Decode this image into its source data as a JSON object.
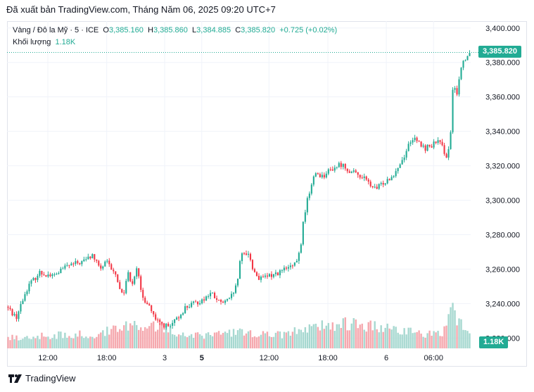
{
  "header": {
    "published": "Đã xuất bản TradingView.com, Tháng Năm 06, 2025 09:20 UTC+7"
  },
  "legend": {
    "symbol": "Vàng / Đô la Mỹ · 5 · ICE",
    "o_label": "O",
    "o_value": "3,385.160",
    "h_label": "H",
    "h_value": "3,385.860",
    "l_label": "L",
    "l_value": "3,384.885",
    "c_label": "C",
    "c_value": "3,385.820",
    "change": "+0.725 (+0.02%)",
    "volume_label": "Khối lượng",
    "volume_value": "1.18K"
  },
  "price_tag": "3,385.820",
  "volume_tag": "1.18K",
  "footer": {
    "brand": "TradingView"
  },
  "colors": {
    "up": "#22ab94",
    "down": "#f23645",
    "vol_up": "#a6d8d0",
    "vol_down": "#f5a8ae",
    "grid": "#f0f3fa",
    "text": "#131722"
  },
  "chart_data": {
    "type": "candlestick",
    "title": "Vàng / Đô la Mỹ · 5 · ICE",
    "y_ticks": [
      "3,400.000",
      "3,380.000",
      "3,360.000",
      "3,340.000",
      "3,320.000",
      "3,300.000",
      "3,280.000",
      "3,260.000",
      "3,240.000",
      "3,220.000"
    ],
    "y_tick_values": [
      3400,
      3380,
      3360,
      3340,
      3320,
      3300,
      3280,
      3260,
      3240,
      3220
    ],
    "ylim": [
      3214,
      3404
    ],
    "x_ticks": [
      {
        "label": "12:00",
        "bold": false,
        "pos": 0.088
      },
      {
        "label": "18:00",
        "bold": false,
        "pos": 0.215
      },
      {
        "label": "3",
        "bold": false,
        "pos": 0.34
      },
      {
        "label": "5",
        "bold": true,
        "pos": 0.42
      },
      {
        "label": "12:00",
        "bold": false,
        "pos": 0.565
      },
      {
        "label": "18:00",
        "bold": false,
        "pos": 0.692
      },
      {
        "label": "6",
        "bold": false,
        "pos": 0.818
      },
      {
        "label": "06:00",
        "bold": false,
        "pos": 0.92
      }
    ],
    "last_price": 3385.82,
    "path": [
      [
        0,
        3238
      ],
      [
        0.02,
        3232
      ],
      [
        0.045,
        3250
      ],
      [
        0.07,
        3258
      ],
      [
        0.1,
        3256
      ],
      [
        0.13,
        3262
      ],
      [
        0.16,
        3264
      ],
      [
        0.185,
        3268
      ],
      [
        0.2,
        3260
      ],
      [
        0.215,
        3264
      ],
      [
        0.235,
        3256
      ],
      [
        0.25,
        3244
      ],
      [
        0.26,
        3258
      ],
      [
        0.27,
        3252
      ],
      [
        0.28,
        3262
      ],
      [
        0.29,
        3244
      ],
      [
        0.305,
        3240
      ],
      [
        0.32,
        3230
      ],
      [
        0.335,
        3228
      ],
      [
        0.35,
        3226
      ],
      [
        0.37,
        3232
      ],
      [
        0.385,
        3238
      ],
      [
        0.405,
        3240
      ],
      [
        0.42,
        3242
      ],
      [
        0.44,
        3246
      ],
      [
        0.46,
        3240
      ],
      [
        0.48,
        3242
      ],
      [
        0.495,
        3250
      ],
      [
        0.505,
        3268
      ],
      [
        0.52,
        3270
      ],
      [
        0.53,
        3260
      ],
      [
        0.545,
        3254
      ],
      [
        0.565,
        3256
      ],
      [
        0.585,
        3258
      ],
      [
        0.6,
        3260
      ],
      [
        0.62,
        3262
      ],
      [
        0.632,
        3270
      ],
      [
        0.64,
        3290
      ],
      [
        0.65,
        3303
      ],
      [
        0.665,
        3316
      ],
      [
        0.68,
        3314
      ],
      [
        0.7,
        3318
      ],
      [
        0.72,
        3321
      ],
      [
        0.745,
        3316
      ],
      [
        0.765,
        3314
      ],
      [
        0.78,
        3310
      ],
      [
        0.795,
        3306
      ],
      [
        0.81,
        3310
      ],
      [
        0.83,
        3314
      ],
      [
        0.85,
        3322
      ],
      [
        0.86,
        3328
      ],
      [
        0.872,
        3336
      ],
      [
        0.885,
        3334
      ],
      [
        0.9,
        3330
      ],
      [
        0.915,
        3332
      ],
      [
        0.93,
        3334
      ],
      [
        0.94,
        3330
      ],
      [
        0.948,
        3326
      ],
      [
        0.955,
        3330
      ],
      [
        0.962,
        3366
      ],
      [
        0.97,
        3362
      ],
      [
        0.978,
        3376
      ],
      [
        0.986,
        3382
      ],
      [
        1.0,
        3386
      ]
    ],
    "volume_envelope": [
      [
        0,
        0.22
      ],
      [
        0.05,
        0.25
      ],
      [
        0.1,
        0.28
      ],
      [
        0.15,
        0.3
      ],
      [
        0.2,
        0.3
      ],
      [
        0.25,
        0.55
      ],
      [
        0.3,
        0.5
      ],
      [
        0.34,
        0.45
      ],
      [
        0.38,
        0.3
      ],
      [
        0.42,
        0.28
      ],
      [
        0.46,
        0.3
      ],
      [
        0.5,
        0.35
      ],
      [
        0.55,
        0.3
      ],
      [
        0.6,
        0.3
      ],
      [
        0.65,
        0.45
      ],
      [
        0.7,
        0.5
      ],
      [
        0.75,
        0.55
      ],
      [
        0.8,
        0.45
      ],
      [
        0.85,
        0.4
      ],
      [
        0.9,
        0.3
      ],
      [
        0.94,
        0.3
      ],
      [
        0.96,
        0.8
      ],
      [
        0.98,
        0.5
      ],
      [
        1.0,
        0.4
      ]
    ]
  }
}
